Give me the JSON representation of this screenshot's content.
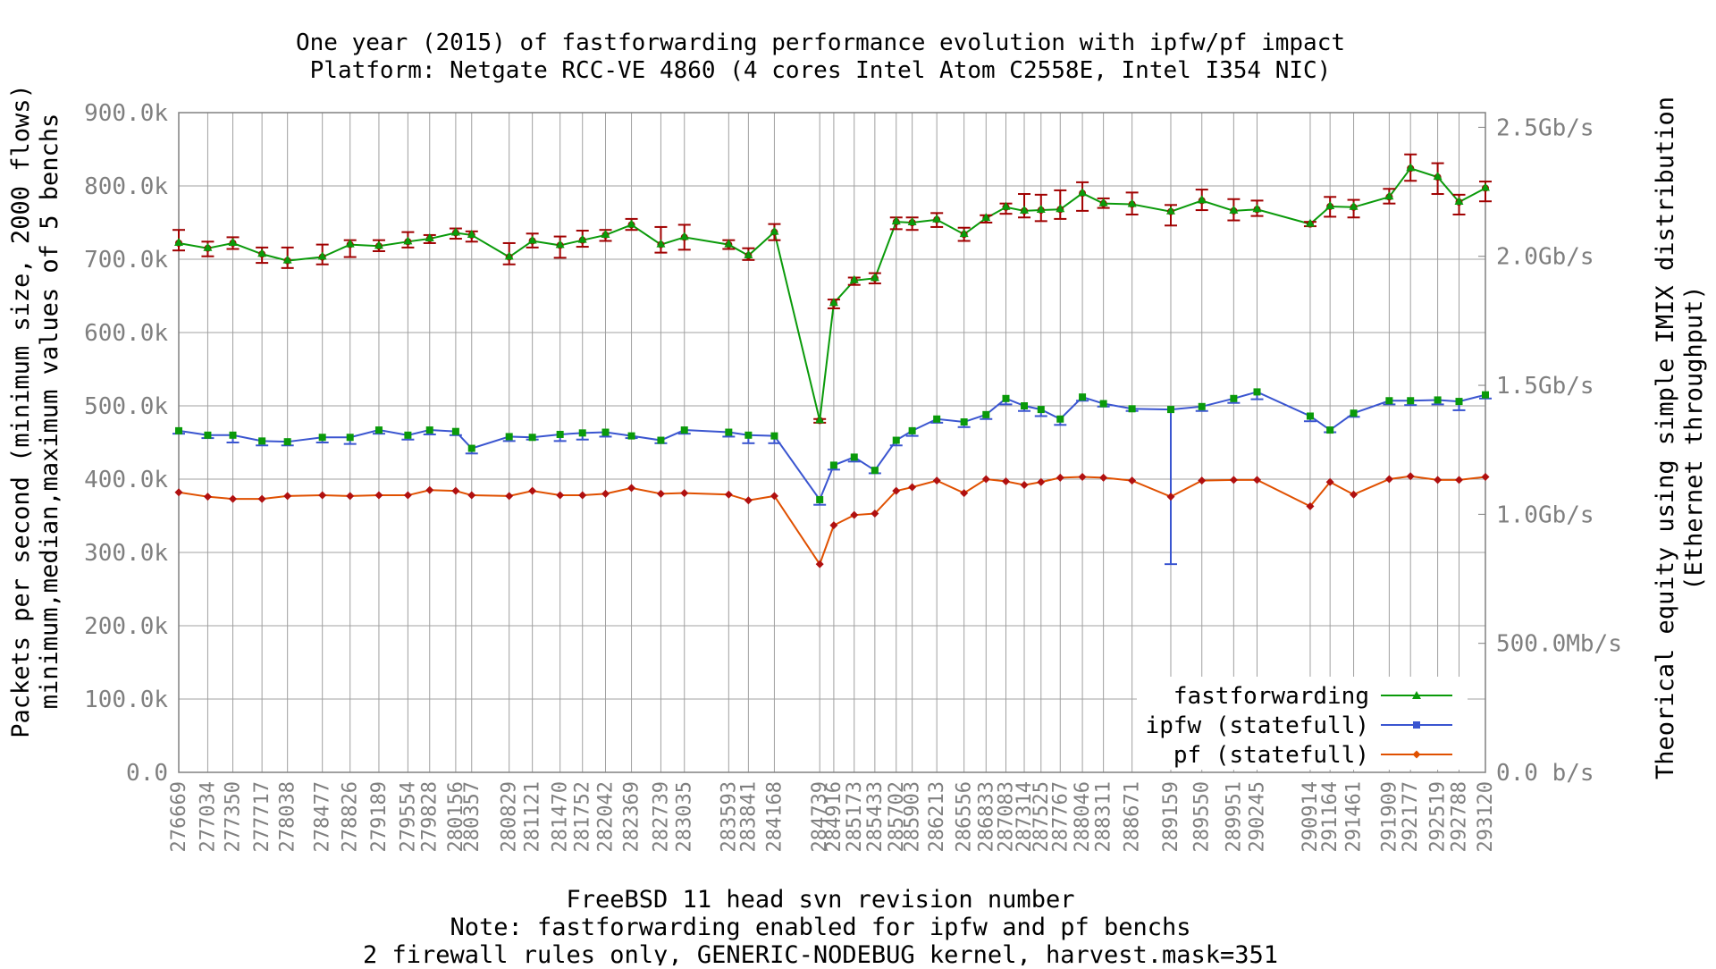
{
  "colors": {
    "fastforwarding": "#0a9a0a",
    "ipfw": "#3a55d0",
    "pf": "#e05000",
    "errorbar": "#a00000",
    "grid": "#a0a0a0",
    "tick_text": "#7f7f7f"
  },
  "chart_data": {
    "type": "line",
    "title": [
      "One year (2015) of fastforwarding performance evolution with ipfw/pf impact",
      "Platform: Netgate RCC-VE 4860 (4 cores Intel Atom C2558E, Intel I354 NIC)"
    ],
    "xlabel": [
      "FreeBSD 11 head svn revision number",
      "Note: fastforwarding enabled for ipfw and pf benchs",
      "2 firewall rules only, GENERIC-NODEBUG kernel, harvest.mask=351"
    ],
    "ylabel": [
      "Packets per second (minimum size, 2000 flows)",
      "minimum,median,maximum values of 5 benchs"
    ],
    "y2label": [
      "Theorical equity using simple IMIX distribution",
      "(Ethernet throughput)"
    ],
    "ylim": [
      0,
      900000
    ],
    "y_ticks": [
      {
        "value": 0,
        "label": "0.0"
      },
      {
        "value": 100000,
        "label": "100.0k"
      },
      {
        "value": 200000,
        "label": "200.0k"
      },
      {
        "value": 300000,
        "label": "300.0k"
      },
      {
        "value": 400000,
        "label": "400.0k"
      },
      {
        "value": 500000,
        "label": "500.0k"
      },
      {
        "value": 600000,
        "label": "600.0k"
      },
      {
        "value": 700000,
        "label": "700.0k"
      },
      {
        "value": 800000,
        "label": "800.0k"
      },
      {
        "value": 900000,
        "label": "900.0k"
      }
    ],
    "y2_ticks": [
      {
        "value": 0,
        "label": "0.0 b/s"
      },
      {
        "value": 176000,
        "label": "500.0Mb/s"
      },
      {
        "value": 352000,
        "label": "1.0Gb/s"
      },
      {
        "value": 528000,
        "label": "1.5Gb/s"
      },
      {
        "value": 704000,
        "label": "2.0Gb/s"
      },
      {
        "value": 880000,
        "label": "2.5Gb/s"
      }
    ],
    "grid": true,
    "legend_position": "bottom-right",
    "revisions": [
      276669,
      277034,
      277350,
      277717,
      278038,
      278477,
      278826,
      279189,
      279554,
      279828,
      280156,
      280357,
      280829,
      281121,
      281470,
      281752,
      282042,
      282369,
      282739,
      283035,
      283593,
      283841,
      284168,
      284739,
      284916,
      285173,
      285433,
      285702,
      285903,
      286213,
      286556,
      286833,
      287083,
      287314,
      287525,
      287767,
      288046,
      288311,
      288671,
      289159,
      289550,
      289951,
      290245,
      290914,
      291164,
      291461,
      291909,
      292177,
      292519,
      292788,
      293120
    ],
    "series": [
      {
        "name": "fastforwarding",
        "marker": "triangle",
        "median": [
          722000,
          715000,
          722000,
          707000,
          698000,
          703000,
          720000,
          718000,
          724000,
          728000,
          736000,
          733000,
          703000,
          725000,
          719000,
          726000,
          733000,
          747000,
          720000,
          730000,
          720000,
          705000,
          737000,
          480000,
          640000,
          671000,
          674000,
          751000,
          750000,
          754000,
          734000,
          756000,
          771000,
          766000,
          767000,
          768000,
          790000,
          776000,
          775000,
          765000,
          780000,
          766000,
          768000,
          748000,
          772000,
          771000,
          785000,
          824000,
          812000,
          778000,
          797000
        ],
        "min": [
          712000,
          704000,
          714000,
          695000,
          688000,
          693000,
          703000,
          711000,
          716000,
          722000,
          728000,
          724000,
          693000,
          716000,
          702000,
          717000,
          725000,
          740000,
          709000,
          713000,
          714000,
          699000,
          726000,
          477000,
          633000,
          665000,
          667000,
          741000,
          740000,
          744000,
          725000,
          750000,
          762000,
          757000,
          752000,
          755000,
          766000,
          770000,
          761000,
          746000,
          767000,
          753000,
          759000,
          745000,
          758000,
          757000,
          776000,
          807000,
          789000,
          761000,
          779000
        ],
        "max": [
          740000,
          724000,
          730000,
          716000,
          716000,
          720000,
          726000,
          726000,
          737000,
          733000,
          742000,
          738000,
          722000,
          735000,
          731000,
          739000,
          740000,
          755000,
          744000,
          747000,
          726000,
          715000,
          748000,
          482000,
          645000,
          675000,
          681000,
          757000,
          757000,
          763000,
          743000,
          760000,
          776000,
          789000,
          788000,
          794000,
          805000,
          783000,
          791000,
          774000,
          795000,
          782000,
          780000,
          751000,
          785000,
          781000,
          796000,
          843000,
          831000,
          788000,
          806000
        ]
      },
      {
        "name": "ipfw (statefull)",
        "marker": "square",
        "median": [
          466000,
          460000,
          460000,
          452000,
          451000,
          457000,
          457000,
          467000,
          460000,
          467000,
          465000,
          442000,
          458000,
          457000,
          461000,
          463000,
          464000,
          459000,
          453000,
          467000,
          464000,
          460000,
          459000,
          372000,
          419000,
          430000,
          412000,
          453000,
          466000,
          482000,
          478000,
          488000,
          510000,
          500000,
          495000,
          482000,
          512000,
          503000,
          496000,
          495000,
          499000,
          510000,
          519000,
          486000,
          467000,
          490000,
          507000,
          507000,
          508000,
          506000,
          515000
        ],
        "min": [
          462000,
          456000,
          450000,
          446000,
          446000,
          450000,
          448000,
          462000,
          454000,
          461000,
          460000,
          435000,
          452000,
          454000,
          452000,
          454000,
          458000,
          456000,
          449000,
          462000,
          458000,
          449000,
          449000,
          365000,
          413000,
          424000,
          408000,
          446000,
          459000,
          477000,
          471000,
          482000,
          502000,
          493000,
          486000,
          474000,
          507000,
          499000,
          493000,
          284000,
          493000,
          504000,
          509000,
          479000,
          464000,
          485000,
          502000,
          501000,
          502000,
          494000,
          510000
        ]
      },
      {
        "name": "pf (statefull)",
        "marker": "diamond",
        "median": [
          382000,
          376000,
          373000,
          373000,
          377000,
          378000,
          377000,
          378000,
          378000,
          385000,
          384000,
          378000,
          377000,
          384000,
          378000,
          378000,
          380000,
          388000,
          380000,
          381000,
          379000,
          371000,
          377000,
          284000,
          337000,
          351000,
          353000,
          384000,
          389000,
          398000,
          381000,
          400000,
          397000,
          392000,
          396000,
          402000,
          403000,
          402000,
          398000,
          376000,
          398000,
          399000,
          399000,
          363000,
          396000,
          379000,
          400000,
          404000,
          399000,
          399000,
          403000
        ]
      }
    ]
  }
}
